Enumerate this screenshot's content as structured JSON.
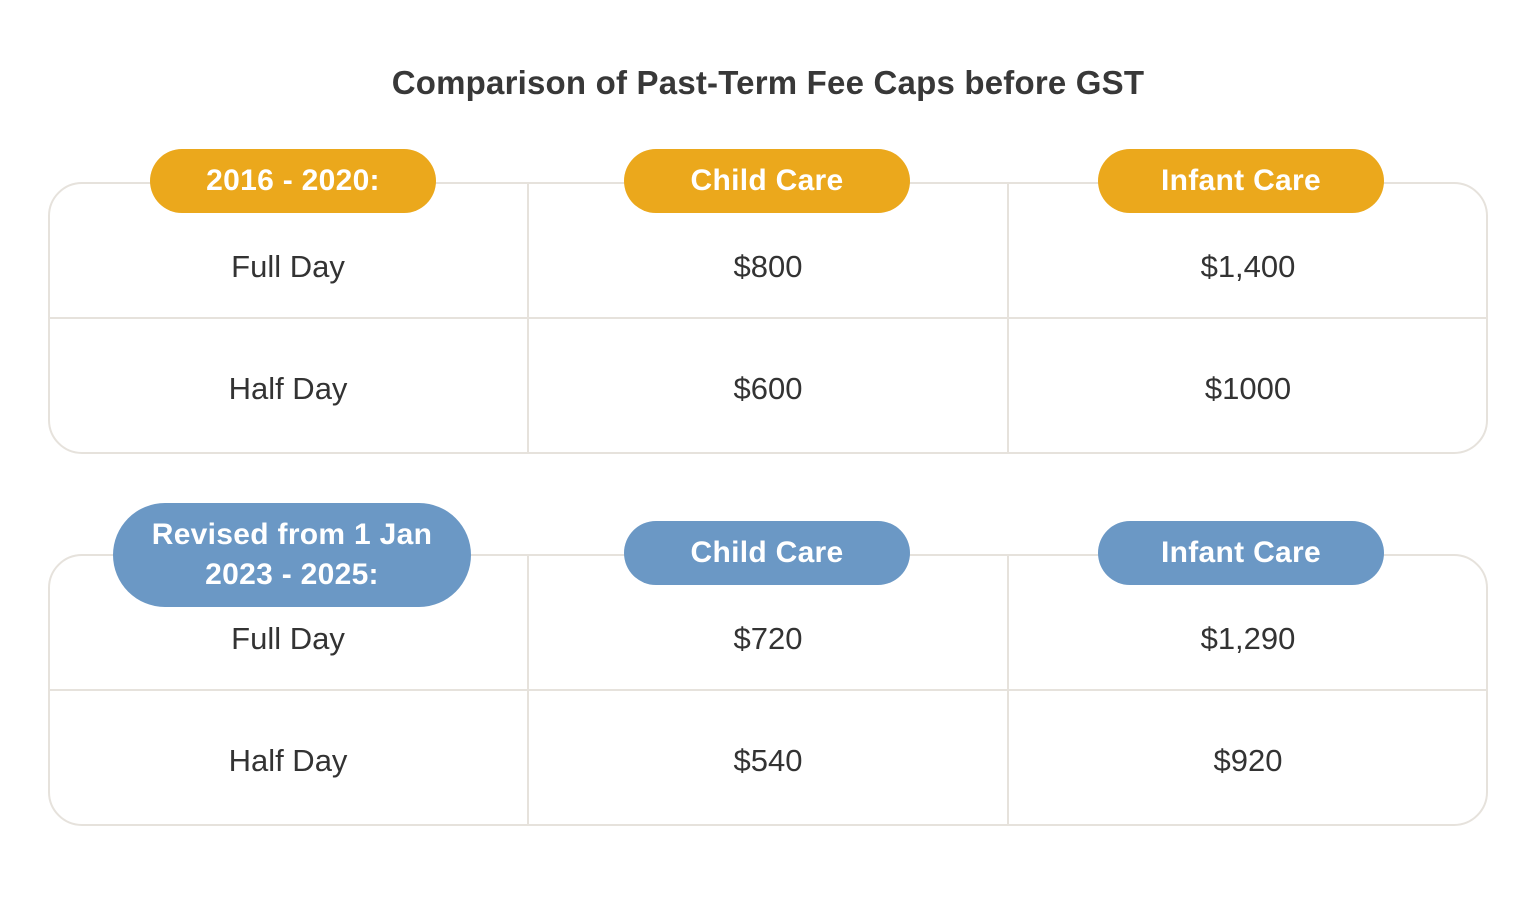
{
  "title": "Comparison of Past-Term Fee Caps before GST",
  "colors": {
    "period1_accent": "#eba81c",
    "period2_accent": "#6b98c5",
    "border": "#e6e2dc"
  },
  "sections": [
    {
      "period_label": "2016 - 2020:",
      "headers": [
        "Child Care",
        "Infant Care"
      ],
      "rows": [
        {
          "label": "Full Day",
          "child_care": "$800",
          "infant_care": "$1,400"
        },
        {
          "label": "Half Day",
          "child_care": "$600",
          "infant_care": "$1000"
        }
      ]
    },
    {
      "period_label_lines": [
        "Revised from 1 Jan",
        "2023 - 2025:"
      ],
      "headers": [
        "Child Care",
        "Infant Care"
      ],
      "rows": [
        {
          "label": "Full Day",
          "child_care": "$720",
          "infant_care": "$1,290"
        },
        {
          "label": "Half Day",
          "child_care": "$540",
          "infant_care": "$920"
        }
      ]
    }
  ]
}
